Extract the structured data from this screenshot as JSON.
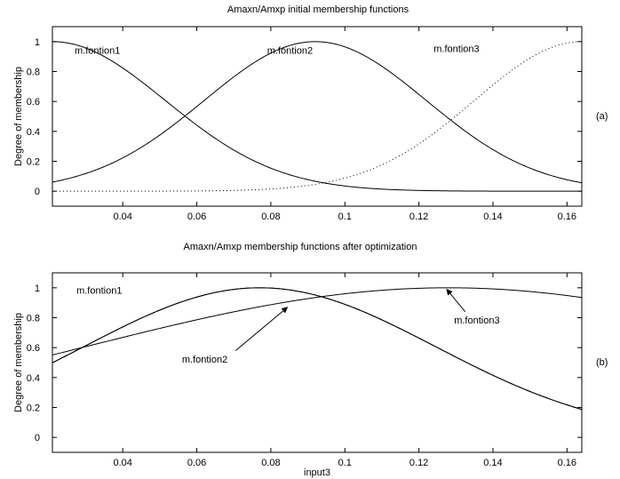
{
  "chart_data": [
    {
      "type": "line",
      "panel_tag": "(a)",
      "title": "Amaxn/Amxp initial membership functions",
      "xlabel": "",
      "ylabel": "Degree of membership",
      "xlim": [
        0.021,
        0.164
      ],
      "ylim": [
        -0.1,
        1.1
      ],
      "xticks": [
        0.04,
        0.06,
        0.08,
        0.1,
        0.12,
        0.14,
        0.16
      ],
      "xtick_labels": [
        "0.04",
        "0.06",
        "0.08",
        "0.1",
        "0.12",
        "0.14",
        "0.16"
      ],
      "yticks": [
        0,
        0.2,
        0.4,
        0.6,
        0.8,
        1
      ],
      "ytick_labels": [
        "0",
        "0.2",
        "0.4",
        "0.6",
        "0.8",
        "1"
      ],
      "grid": false,
      "series": [
        {
          "name": "m.fontion1",
          "shape": "gaussian",
          "center": 0.021,
          "sigma": 0.0305,
          "style": "solid",
          "color": "#000000",
          "label": {
            "x": 0.027,
            "y": 0.92
          }
        },
        {
          "name": "m.fontion2",
          "shape": "gaussian",
          "center": 0.092,
          "sigma": 0.03,
          "style": "solid",
          "color": "#000000",
          "label": {
            "x": 0.079,
            "y": 0.92
          }
        },
        {
          "name": "m.fontion3",
          "shape": "gaussian",
          "center": 0.164,
          "sigma": 0.029,
          "style": "dotted",
          "color": "#000000",
          "label": {
            "x": 0.124,
            "y": 0.93
          }
        }
      ]
    },
    {
      "type": "line",
      "panel_tag": "(b)",
      "title": "Amaxn/Amxp  membership functions after optimization",
      "xlabel": "input3",
      "ylabel": "Degree of membership",
      "xlim": [
        0.021,
        0.164
      ],
      "ylim": [
        -0.1,
        1.1
      ],
      "xticks": [
        0.04,
        0.06,
        0.08,
        0.1,
        0.12,
        0.14,
        0.16
      ],
      "xtick_labels": [
        "0.04",
        "0.06",
        "0.08",
        "0.1",
        "0.12",
        "0.14",
        "0.16"
      ],
      "yticks": [
        0,
        0.2,
        0.4,
        0.6,
        0.8,
        1
      ],
      "ytick_labels": [
        "0",
        "0.2",
        "0.4",
        "0.6",
        "0.8",
        "1"
      ],
      "grid": false,
      "series": [
        {
          "name": "m.fontion1",
          "shape": "gaussian",
          "center": 0.077,
          "sigma": 0.0475,
          "style": "solid",
          "color": "#000000",
          "label": {
            "x": 0.0275,
            "y": 0.96
          }
        },
        {
          "name": "m.fontion2",
          "shape": "gaussian",
          "center": 0.077,
          "sigma": 0.0475,
          "style": "solid",
          "color": "#000000",
          "label": {
            "x": 0.056,
            "y": 0.5
          },
          "arrow": {
            "from": [
              0.0705,
              0.58
            ],
            "to": [
              0.0845,
              0.87
            ]
          }
        },
        {
          "name": "m.fontion3",
          "shape": "gaussian",
          "center": 0.128,
          "sigma": 0.098,
          "style": "solid",
          "color": "#000000",
          "label": {
            "x": 0.1295,
            "y": 0.76
          },
          "arrow": {
            "from": [
              0.1325,
              0.84
            ],
            "to": [
              0.1275,
              0.99
            ]
          }
        }
      ]
    }
  ]
}
